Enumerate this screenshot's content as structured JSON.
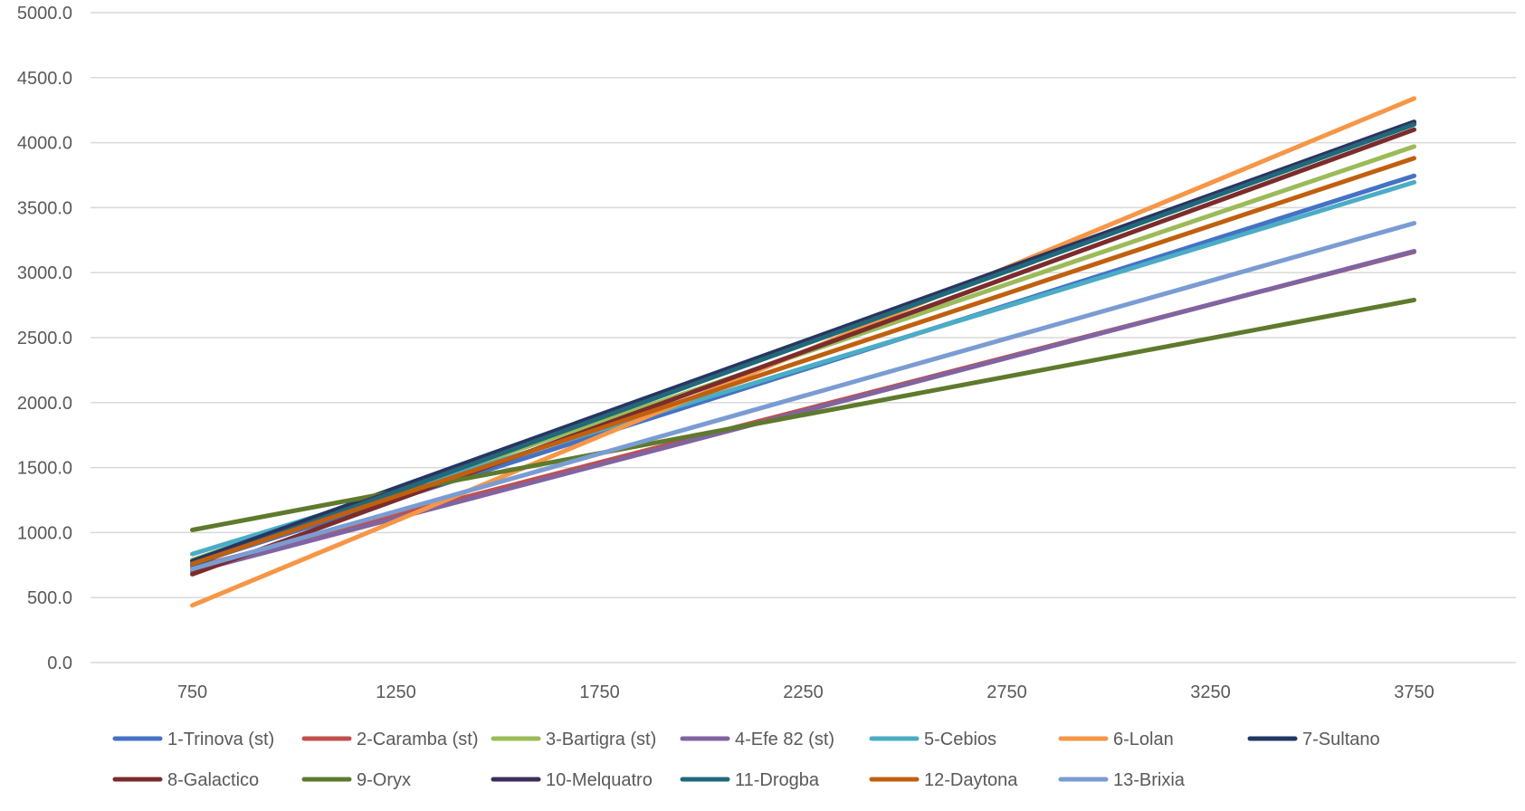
{
  "chart_data": {
    "type": "line",
    "title": "",
    "xlabel": "",
    "ylabel": "",
    "x": [
      750,
      3750
    ],
    "x_ticks": [
      "750",
      "1250",
      "1750",
      "2250",
      "2750",
      "3250",
      "3750"
    ],
    "y_ticks": [
      "0.0",
      "500.0",
      "1000.0",
      "1500.0",
      "2000.0",
      "2500.0",
      "3000.0",
      "3500.0",
      "4000.0",
      "4500.0",
      "5000.0"
    ],
    "xlim": [
      500,
      4000
    ],
    "ylim": [
      0,
      5000
    ],
    "grid": "horizontal",
    "legend_position": "bottom",
    "series": [
      {
        "name": "1-Trinova (st)",
        "color": "#4472C4",
        "values": [
          760,
          3745
        ]
      },
      {
        "name": "2-Caramba (st)",
        "color": "#C0504D",
        "values": [
          730,
          3160
        ]
      },
      {
        "name": "3-Bartigra (st)",
        "color": "#9BBB59",
        "values": [
          790,
          3970
        ]
      },
      {
        "name": "4-Efe 82 (st)",
        "color": "#8064A2",
        "values": [
          700,
          3165
        ]
      },
      {
        "name": "5-Cebios",
        "color": "#4BACC6",
        "values": [
          835,
          3695
        ]
      },
      {
        "name": "6-Lolan",
        "color": "#F79646",
        "values": [
          440,
          4340
        ]
      },
      {
        "name": "7-Sultano",
        "color": "#1F3864",
        "values": [
          780,
          4160
        ]
      },
      {
        "name": "8-Galactico",
        "color": "#7B2C2B",
        "values": [
          680,
          4100
        ]
      },
      {
        "name": "9-Oryx",
        "color": "#5E7A2C",
        "values": [
          1020,
          2790
        ]
      },
      {
        "name": "10-Melquatro",
        "color": "#3F2E5C",
        "values": [
          760,
          4150
        ]
      },
      {
        "name": "11-Drogba",
        "color": "#1F6A7A",
        "values": [
          750,
          4140
        ]
      },
      {
        "name": "12-Daytona",
        "color": "#C0600F",
        "values": [
          760,
          3880
        ]
      },
      {
        "name": "13-Brixia",
        "color": "#7A9CD3",
        "values": [
          720,
          3380
        ]
      }
    ]
  }
}
